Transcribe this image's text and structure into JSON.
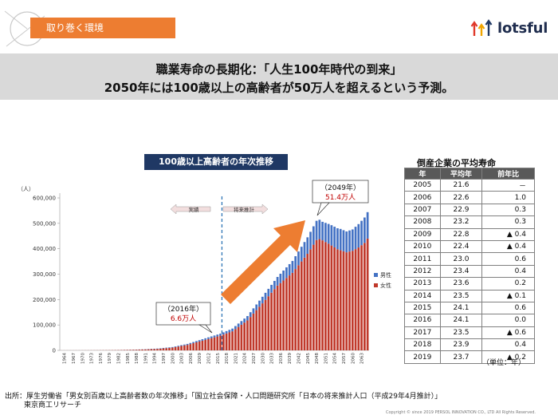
{
  "header": {
    "section_label": "取り巻く環境",
    "logo_text": "lotsful"
  },
  "headline": {
    "line1": "職業寿命の長期化：「人生100年時代の到来」",
    "line2": "2050年には100歳以上の高齢者が50万人を超えるという予測。"
  },
  "colors": {
    "accent": "#ed7d31",
    "navy": "#1f3864",
    "male": "#4472c4",
    "female": "#c0392b",
    "header_band": "#d9d9d9"
  },
  "chart_data": {
    "type": "bar",
    "stacked": true,
    "title": "100歳以上高齢者の年次推移",
    "ylabel": "（人）",
    "ylim": [
      0,
      600000
    ],
    "ytick_labels": [
      "0",
      "100,000",
      "200,000",
      "300,000",
      "400,000",
      "500,000",
      "600,000"
    ],
    "xtick_labels": [
      "1964",
      "1967",
      "1970",
      "1973",
      "1976",
      "1979",
      "1982",
      "1985",
      "1988",
      "1991",
      "1994",
      "1997",
      "2000",
      "2003",
      "2006",
      "2009",
      "2012",
      "2015",
      "2018",
      "2021",
      "2024",
      "2027",
      "2030",
      "2033",
      "2036",
      "2039",
      "2042",
      "2045",
      "2048",
      "2051",
      "2054",
      "2057",
      "2060",
      "2063"
    ],
    "x_start": 1963,
    "x_end": 2065,
    "legend": {
      "position": "right",
      "male": "男性",
      "female": "女性"
    },
    "zone_actual": "実績",
    "zone_forecast": "将来推計",
    "divider_year": 2016,
    "series": [
      {
        "name": "男性",
        "keypoints": [
          [
            1963,
            0
          ],
          [
            1980,
            100
          ],
          [
            1990,
            600
          ],
          [
            2000,
            2200
          ],
          [
            2005,
            3900
          ],
          [
            2010,
            5900
          ],
          [
            2016,
            7800
          ],
          [
            2020,
            10800
          ],
          [
            2025,
            17000
          ],
          [
            2030,
            26000
          ],
          [
            2035,
            34000
          ],
          [
            2040,
            47000
          ],
          [
            2045,
            65000
          ],
          [
            2048,
            76000
          ],
          [
            2049,
            76000
          ],
          [
            2050,
            73000
          ],
          [
            2053,
            80000
          ],
          [
            2056,
            84000
          ],
          [
            2058,
            82000
          ],
          [
            2060,
            84000
          ],
          [
            2062,
            92000
          ],
          [
            2064,
            100000
          ],
          [
            2065,
            104000
          ]
        ]
      },
      {
        "name": "女性",
        "keypoints": [
          [
            1963,
            150
          ],
          [
            1970,
            300
          ],
          [
            1975,
            500
          ],
          [
            1980,
            900
          ],
          [
            1985,
            1700
          ],
          [
            1990,
            3300
          ],
          [
            1995,
            5800
          ],
          [
            2000,
            10800
          ],
          [
            2005,
            21500
          ],
          [
            2010,
            38000
          ],
          [
            2016,
            58000
          ],
          [
            2020,
            75000
          ],
          [
            2025,
            118000
          ],
          [
            2030,
            185000
          ],
          [
            2035,
            255000
          ],
          [
            2040,
            305000
          ],
          [
            2045,
            380000
          ],
          [
            2048,
            434000
          ],
          [
            2049,
            438000
          ],
          [
            2050,
            433000
          ],
          [
            2052,
            420000
          ],
          [
            2055,
            398000
          ],
          [
            2058,
            386000
          ],
          [
            2060,
            392000
          ],
          [
            2062,
            405000
          ],
          [
            2064,
            423000
          ],
          [
            2065,
            440000
          ]
        ]
      }
    ],
    "callouts": [
      {
        "year_label": "（2016年）",
        "value_label": "6.6万人"
      },
      {
        "year_label": "（2049年）",
        "value_label": "51.4万人"
      }
    ]
  },
  "life_table": {
    "title": "倒産企業の平均寿命",
    "headers": [
      "年",
      "平均年",
      "前年比"
    ],
    "rows": [
      [
        "2005",
        "21.6",
        "－"
      ],
      [
        "2006",
        "22.6",
        "1.0"
      ],
      [
        "2007",
        "22.9",
        "0.3"
      ],
      [
        "2008",
        "23.2",
        "0.3"
      ],
      [
        "2009",
        "22.8",
        "▲ 0.4"
      ],
      [
        "2010",
        "22.4",
        "▲ 0.4"
      ],
      [
        "2011",
        "23.0",
        "0.6"
      ],
      [
        "2012",
        "23.4",
        "0.4"
      ],
      [
        "2013",
        "23.6",
        "0.2"
      ],
      [
        "2014",
        "23.5",
        "▲ 0.1"
      ],
      [
        "2015",
        "24.1",
        "0.6"
      ],
      [
        "2016",
        "24.1",
        "0.0"
      ],
      [
        "2017",
        "23.5",
        "▲ 0.6"
      ],
      [
        "2018",
        "23.9",
        "0.4"
      ],
      [
        "2019",
        "23.7",
        "▲ 0.2"
      ]
    ],
    "unit": "（単位：年）"
  },
  "footer": {
    "source_line1": "出所：厚生労働省「男女別百歳以上高齢者数の年次推移」「国立社会保障・人口問題研究所「日本の将来推計人口（平成29年4月推計）」",
    "source_line2": "東京商工リサーチ",
    "copyright": "Copyright © since 2019 PERSOL INNOVATION CO., LTD All Rights Reserved."
  }
}
